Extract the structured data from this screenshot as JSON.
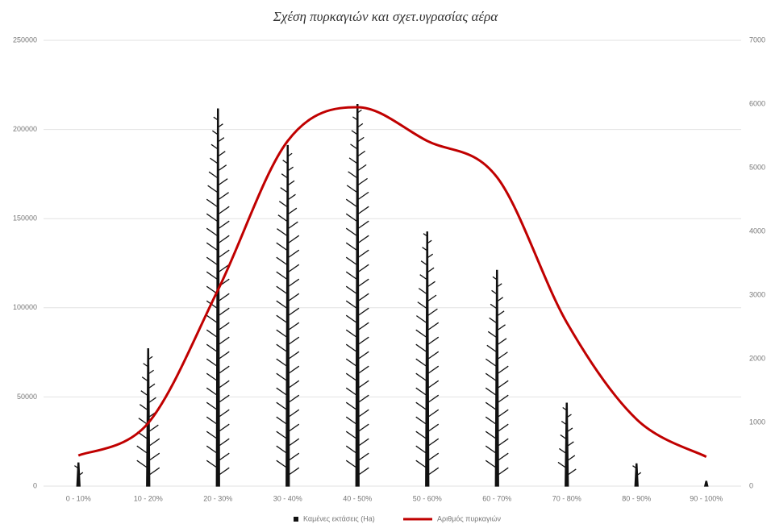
{
  "chart_data": {
    "type": "bar_line",
    "title": "Σχέση πυρκαγιών και σχετ.υγρασίας αέρα",
    "categories": [
      "0 - 10%",
      "10 - 20%",
      "20 - 30%",
      "30 - 40%",
      "40 - 50%",
      "50 - 60%",
      "60 - 70%",
      "70 - 80%",
      "80 - 90%",
      "90 - 100%"
    ],
    "series": [
      {
        "name": "Καμένες εκτάσεις (Ha)",
        "color": "#111111",
        "type": "bar",
        "values": [
          13000,
          77000,
          211500,
          191000,
          214000,
          142500,
          121000,
          46500,
          12500,
          2700
        ]
      },
      {
        "name": "Αριθμός πυρκαγιών",
        "color": "#c00000",
        "type": "line",
        "axis": "y2",
        "values": [
          480,
          990,
          3080,
          5420,
          5950,
          5420,
          4850,
          2570,
          1050,
          460
        ]
      }
    ],
    "ylim": [
      0,
      250000
    ],
    "yticks": [
      0,
      50000,
      100000,
      150000,
      200000,
      250000
    ],
    "y2lim": [
      0,
      7000
    ],
    "y2ticks": [
      0,
      1000,
      2000,
      3000,
      4000,
      5000,
      6000,
      7000
    ],
    "grid": true
  }
}
